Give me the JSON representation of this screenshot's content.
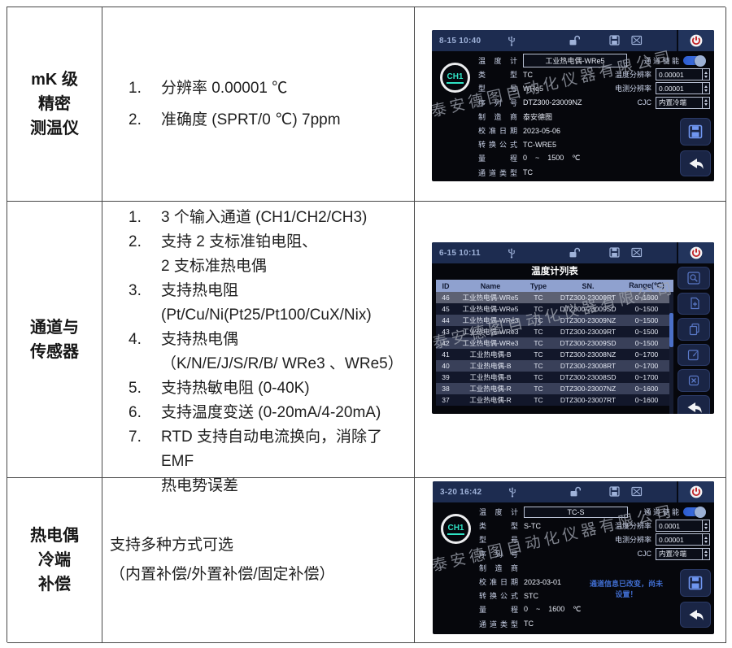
{
  "watermark": "泰安德图自动化仪器有限公司",
  "colors": {
    "statusbar": "#1d2c50",
    "screen_background": "#06070c",
    "accent_blue": "#4f7fe8",
    "table_header": "#8fa1cf",
    "badge_teal": "#2fe3c5",
    "notice_blue": "#3f6bcc",
    "power_red": "#c02428"
  },
  "statusbar_icons": [
    "usb-icon",
    "unlock-icon",
    "save-icon",
    "screenshot-icon",
    "power-icon"
  ],
  "sidebar_icons": [
    "search-icon",
    "add-icon",
    "copy-icon",
    "edit-icon",
    "delete-icon",
    "back-icon"
  ],
  "doc_rows": [
    {
      "label_lines": [
        "mK 级",
        "精密",
        "测温仪"
      ],
      "features": [
        {
          "num": "1.",
          "lines": [
            "分辨率 0.00001 ℃"
          ]
        },
        {
          "num": "2.",
          "lines": [
            "准确度 (SPRT/0 ℃) 7ppm"
          ]
        }
      ]
    },
    {
      "label_lines": [
        "通道与",
        "传感器"
      ],
      "features": [
        {
          "num": "1.",
          "lines": [
            "3 个输入通道 (CH1/CH2/CH3)"
          ]
        },
        {
          "num": "2.",
          "lines": [
            "支持 2 支标准铂电阻、",
            "2 支标准热电偶"
          ]
        },
        {
          "num": "3.",
          "lines": [
            "支持热电阻",
            "(Pt/Cu/Ni(Pt25/Pt100/CuX/Nix)"
          ]
        },
        {
          "num": "4.",
          "lines": [
            "支持热电偶",
            "（K/N/E/J/S/R/B/ WRe3 、WRe5）"
          ]
        },
        {
          "num": "5.",
          "lines": [
            "支持热敏电阻 (0-40K)"
          ]
        },
        {
          "num": "6.",
          "lines": [
            "支持温度变送 (0-20mA/4-20mA)"
          ]
        },
        {
          "num": "7.",
          "lines": [
            "RTD 支持自动电流换向，消除了 EMF",
            "热电势误差"
          ]
        }
      ]
    },
    {
      "label_lines": [
        "热电偶",
        "冷端",
        "补偿"
      ],
      "features": [
        {
          "num": "",
          "lines": [
            "支持多种方式可选",
            "（内置补偿/外置补偿/固定补偿）"
          ]
        }
      ]
    }
  ],
  "screens": {
    "ch1": {
      "time": "8-15 10:40",
      "badge": "CH1",
      "fields": [
        {
          "label": "温度计",
          "value": "工业热电偶-WRe5",
          "boxed": true
        },
        {
          "label": "类型",
          "value": "TC"
        },
        {
          "label": "型号",
          "value": "WRe5"
        },
        {
          "label": "序列号",
          "value": "DTZ300-23009NZ"
        },
        {
          "label": "制造商",
          "value": "泰安德图"
        },
        {
          "label": "校准日期",
          "value": "2023-05-06"
        },
        {
          "label": "转换公式",
          "value": "TC-WRE5"
        },
        {
          "label": "量程",
          "value": "0    ~    1500    ℃"
        },
        {
          "label": "通道类型",
          "value": "TC"
        }
      ],
      "settings": [
        {
          "label": "通 道 使 能",
          "type": "toggle",
          "value": "on"
        },
        {
          "label": "温度分辨率",
          "type": "spinner",
          "value": "0.00001"
        },
        {
          "label": "电测分辨率",
          "type": "spinner",
          "value": "0.00001"
        },
        {
          "label": "CJC",
          "type": "select",
          "value": "内置冷端"
        }
      ]
    },
    "list": {
      "time": "6-15 10:11",
      "title": "温度计列表",
      "columns": [
        "ID",
        "Name",
        "Type",
        "SN.",
        "Range(℃)"
      ],
      "rows": [
        [
          "46",
          "工业热电偶-WRe5",
          "TC",
          "DTZ300-23009RT",
          "0~1500"
        ],
        [
          "45",
          "工业热电偶-WRe5",
          "TC",
          "DTZ300-23009SD",
          "0~1500"
        ],
        [
          "44",
          "工业热电偶-WRe3",
          "TC",
          "DTZ300-23009NZ",
          "0~1500"
        ],
        [
          "43",
          "工业热电偶-WRe3",
          "TC",
          "DTZ300-23009RT",
          "0~1500"
        ],
        [
          "42",
          "工业热电偶-WRe3",
          "TC",
          "DTZ300-23009SD",
          "0~1500"
        ],
        [
          "41",
          "工业热电偶-B",
          "TC",
          "DTZ300-23008NZ",
          "0~1700"
        ],
        [
          "40",
          "工业热电偶-B",
          "TC",
          "DTZ300-23008RT",
          "0~1700"
        ],
        [
          "39",
          "工业热电偶-B",
          "TC",
          "DTZ300-23008SD",
          "0~1700"
        ],
        [
          "38",
          "工业热电偶-R",
          "TC",
          "DTZ300-23007NZ",
          "0~1600"
        ],
        [
          "37",
          "工业热电偶-R",
          "TC",
          "DTZ300-23007RT",
          "0~1600"
        ]
      ]
    },
    "ch3": {
      "time": "3-20 16:42",
      "badge": "CH1",
      "fields": [
        {
          "label": "温度计",
          "value": "TC-S",
          "boxed": true
        },
        {
          "label": "类型",
          "value": "S-TC"
        },
        {
          "label": "型号",
          "value": ""
        },
        {
          "label": "序列号",
          "value": ""
        },
        {
          "label": "制造商",
          "value": ""
        },
        {
          "label": "校准日期",
          "value": "2023-03-01"
        },
        {
          "label": "转换公式",
          "value": "STC"
        },
        {
          "label": "量程",
          "value": "0    ~    1600    ℃"
        },
        {
          "label": "通道类型",
          "value": "TC"
        }
      ],
      "settings": [
        {
          "label": "通 道 使 能",
          "type": "toggle",
          "value": "on"
        },
        {
          "label": "温度分辨率",
          "type": "spinner",
          "value": "0.0001"
        },
        {
          "label": "电测分辨率",
          "type": "spinner",
          "value": "0.00001"
        },
        {
          "label": "CJC",
          "type": "select",
          "value": "内置冷端"
        }
      ],
      "notice_lines": [
        "通道信息已改变，尚未",
        "设置！"
      ]
    }
  }
}
